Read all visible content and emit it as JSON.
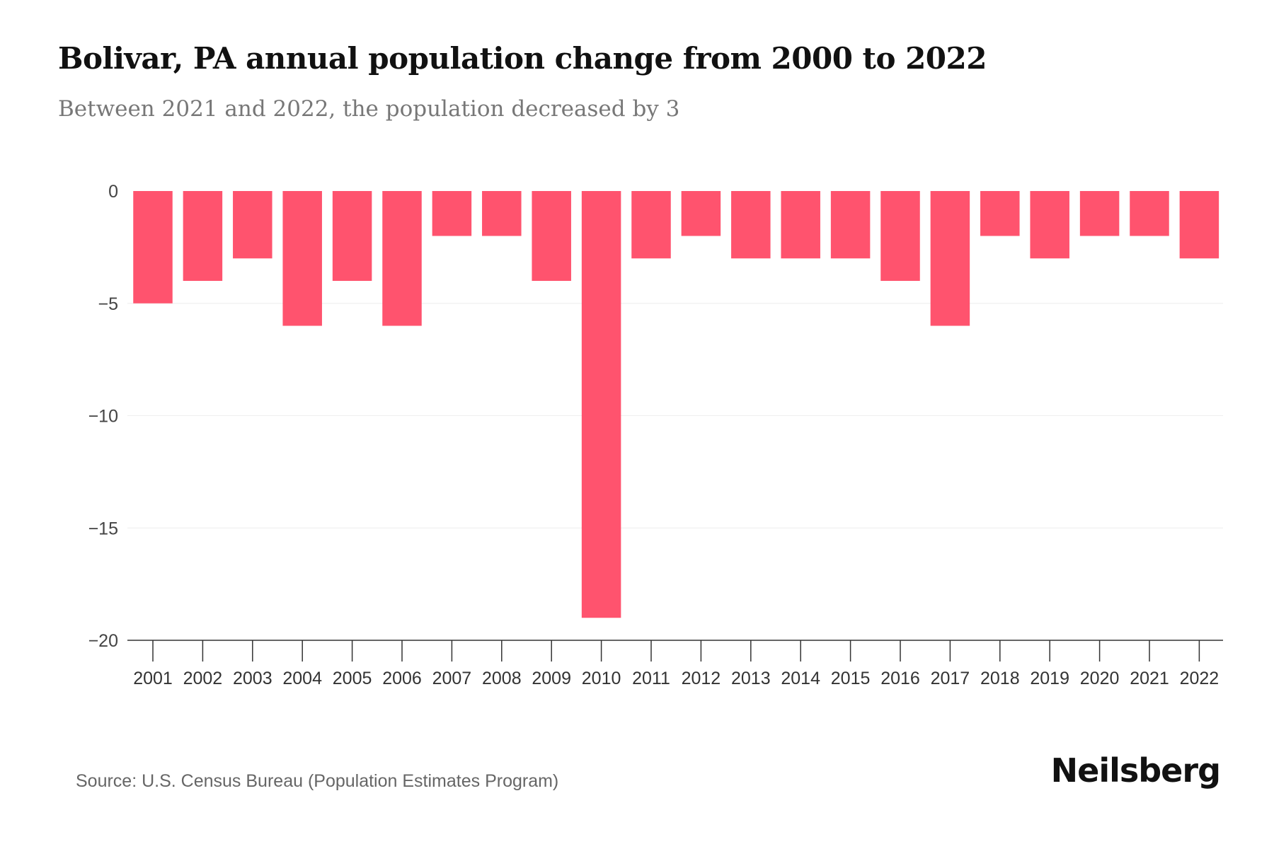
{
  "title": "Bolivar, PA annual population change from 2000 to 2022",
  "subtitle": "Between 2021 and 2022, the population decreased by 3",
  "source": "Source: U.S. Census Bureau (Population Estimates Program)",
  "logo": "Neilsberg",
  "colors": {
    "bar": "#ff536e",
    "grid": "#eeeeee",
    "axis": "#333333"
  },
  "chart_data": {
    "type": "bar",
    "title": "Bolivar, PA annual population change from 2000 to 2022",
    "xlabel": "",
    "ylabel": "",
    "categories": [
      "2001",
      "2002",
      "2003",
      "2004",
      "2005",
      "2006",
      "2007",
      "2008",
      "2009",
      "2010",
      "2011",
      "2012",
      "2013",
      "2014",
      "2015",
      "2016",
      "2017",
      "2018",
      "2019",
      "2020",
      "2021",
      "2022"
    ],
    "values": [
      -5,
      -4,
      -3,
      -6,
      -4,
      -6,
      -2,
      -2,
      -4,
      -19,
      -3,
      -2,
      -3,
      -3,
      -3,
      -4,
      -6,
      -2,
      -3,
      -2,
      -2,
      -3
    ],
    "ylim": [
      -20,
      0
    ],
    "yticks": [
      0,
      -5,
      -10,
      -15,
      -20
    ],
    "ytick_labels": [
      "0",
      "−5",
      "−10",
      "−15",
      "−20"
    ],
    "grid": true
  }
}
